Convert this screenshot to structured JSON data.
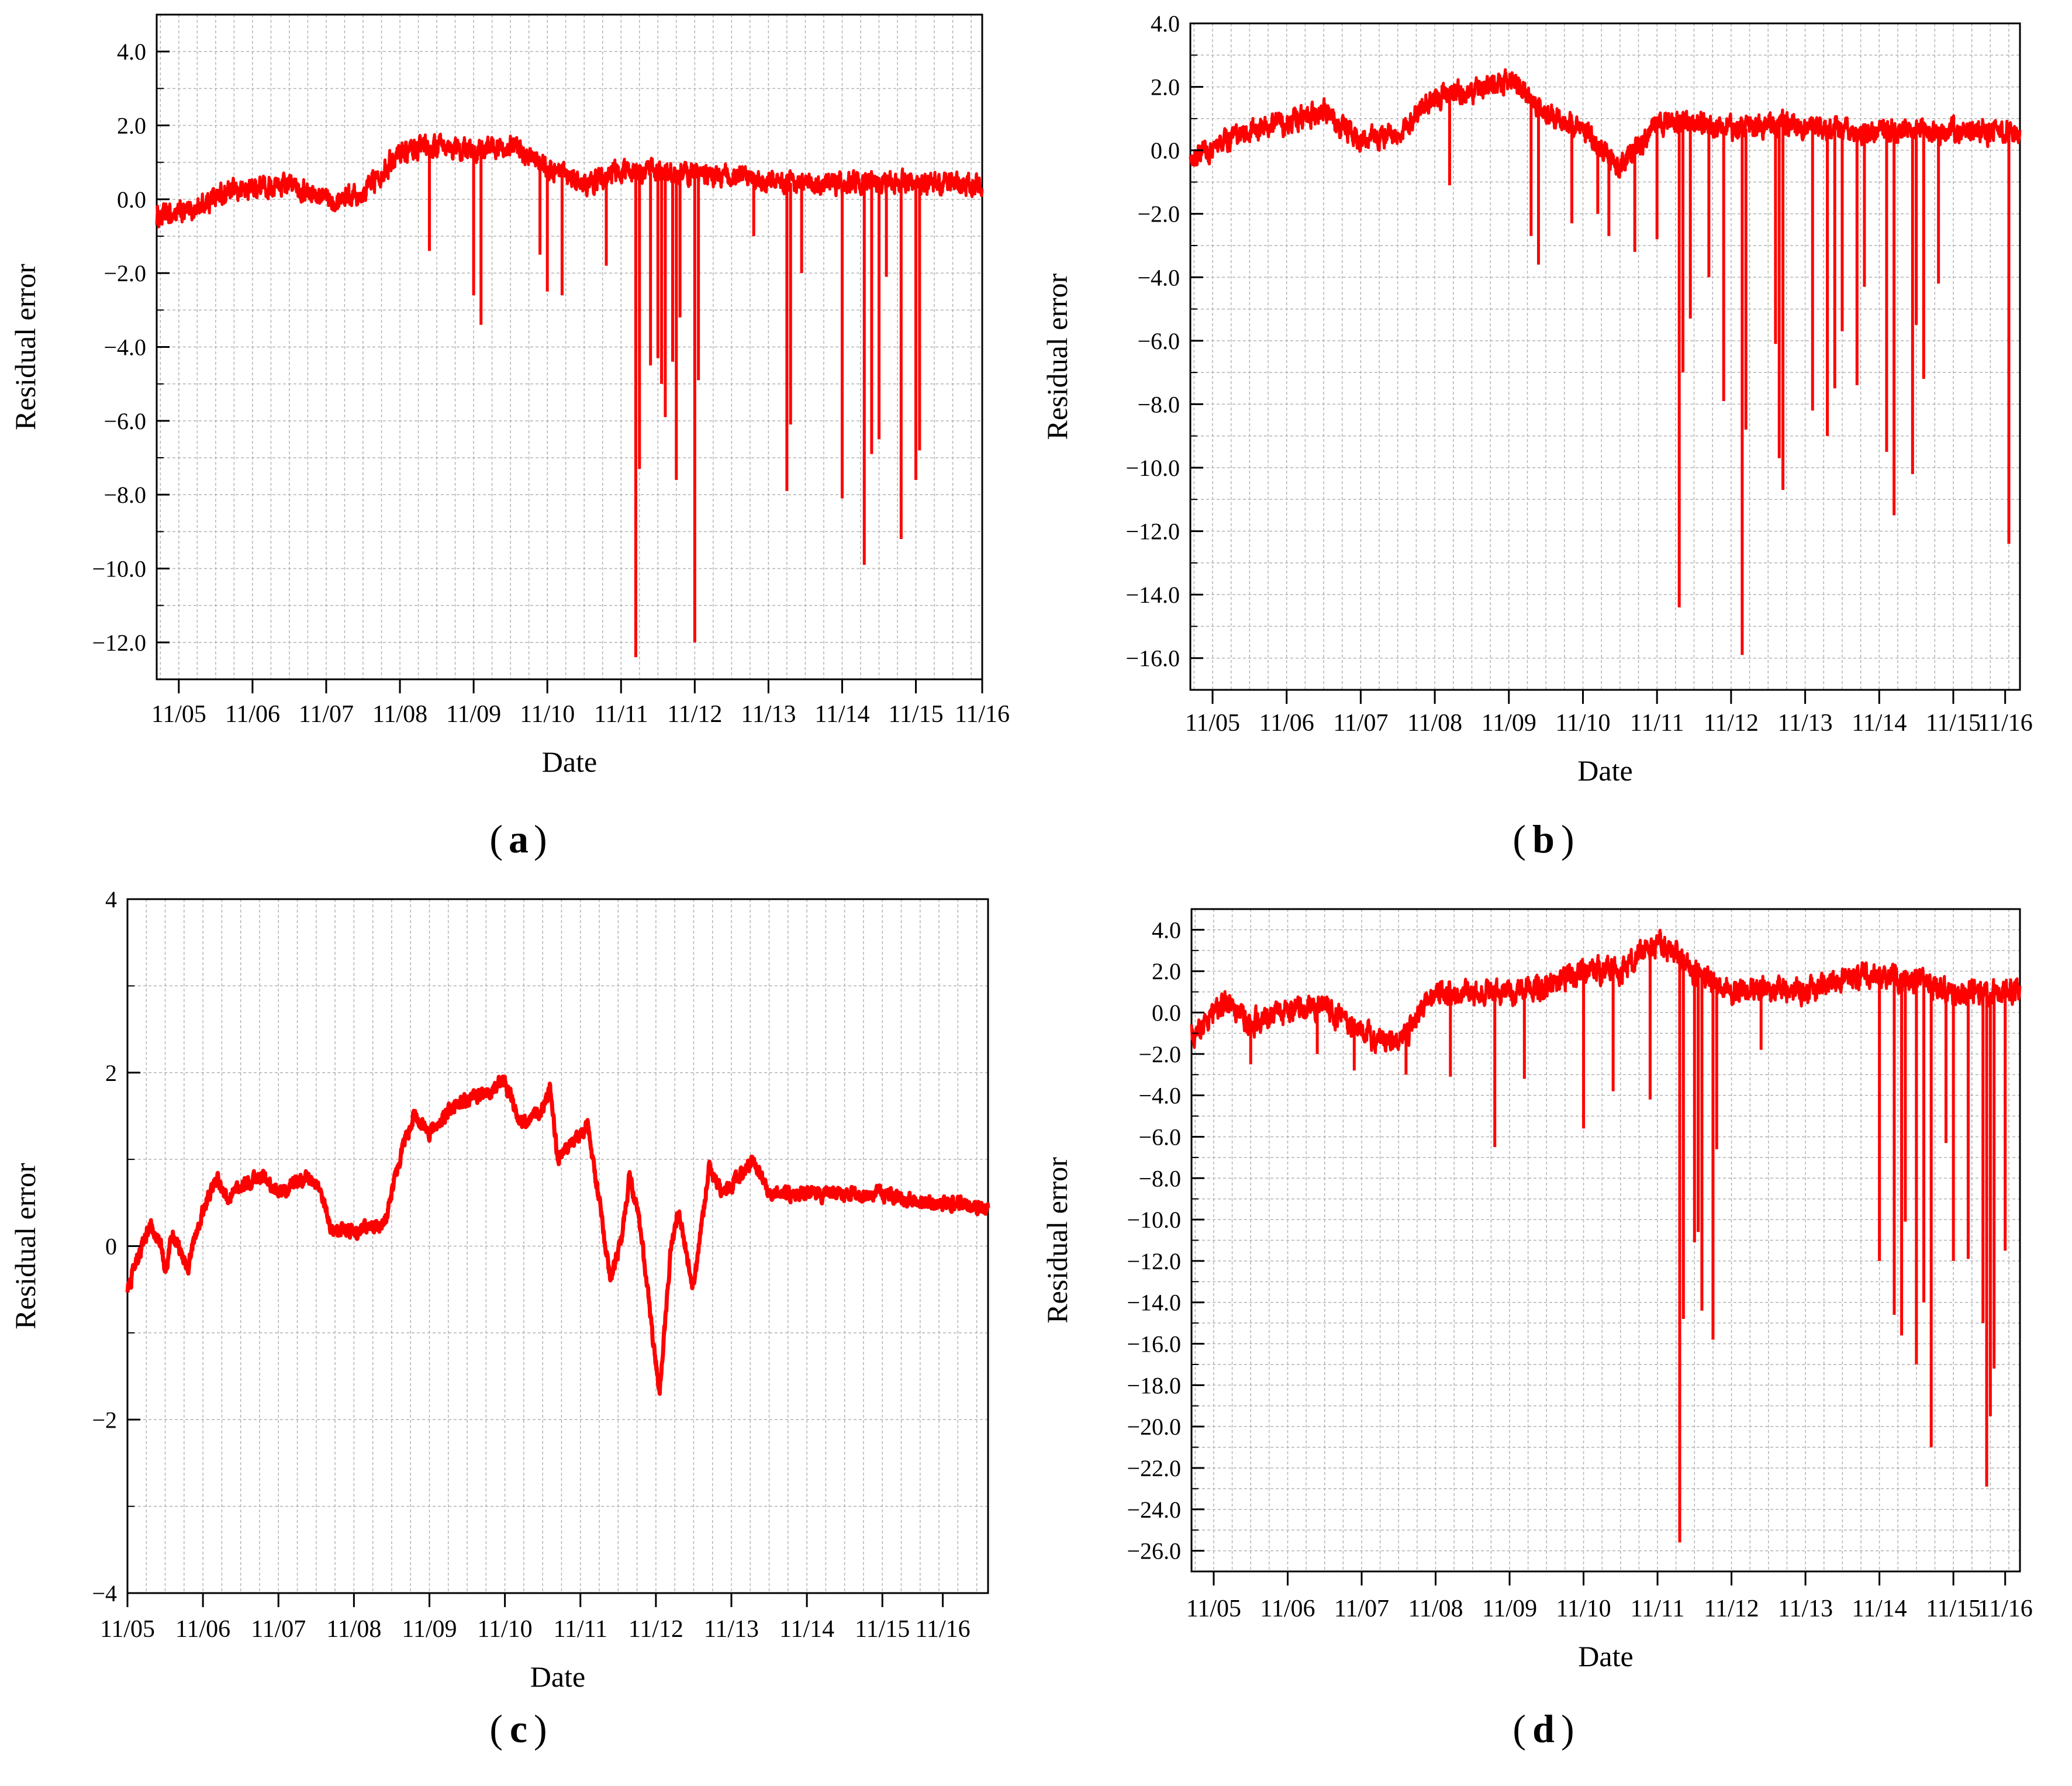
{
  "colors": {
    "series": "#ff0000",
    "axis": "#000000",
    "grid": "#b4b4b4"
  },
  "chart_data": [
    {
      "panel_label": "a",
      "type": "line",
      "title": "",
      "xlabel": "Date",
      "ylabel": "Residual error",
      "ylim": [
        -13,
        5
      ],
      "yticks": [
        4,
        2,
        0,
        -2,
        -4,
        -6,
        -8,
        -10,
        -12
      ],
      "ytick_labels": [
        "4.0",
        "2.0",
        "0.0",
        "−2.0",
        "−4.0",
        "−6.0",
        "−8.0",
        "−10.0",
        "−12.0"
      ],
      "xlim": [
        -0.3,
        10.9
      ],
      "xticks": [
        0,
        1,
        2,
        3,
        4,
        5,
        6,
        7,
        8,
        9,
        10,
        10.9
      ],
      "xtick_labels": [
        "11/05",
        "11/06",
        "11/07",
        "11/08",
        "11/09",
        "11/10",
        "11/11",
        "11/12",
        "11/13",
        "11/14",
        "11/15",
        "11/16"
      ],
      "grid": true,
      "legend": "none",
      "series": [
        {
          "name": "Residual error",
          "anchors": [
            [
              -0.3,
              -0.5
            ],
            [
              0.2,
              -0.3
            ],
            [
              0.5,
              0.1
            ],
            [
              1,
              0.3
            ],
            [
              1.5,
              0.4
            ],
            [
              2,
              0.0
            ],
            [
              2.5,
              0.2
            ],
            [
              3,
              1.3
            ],
            [
              3.5,
              1.4
            ],
            [
              4,
              1.3
            ],
            [
              4.5,
              1.5
            ],
            [
              5,
              0.8
            ],
            [
              5.5,
              0.4
            ],
            [
              6,
              0.8
            ],
            [
              6.5,
              0.7
            ],
            [
              7,
              0.7
            ],
            [
              7.5,
              0.6
            ],
            [
              8,
              0.5
            ],
            [
              8.5,
              0.4
            ],
            [
              9,
              0.4
            ],
            [
              9.5,
              0.5
            ],
            [
              10,
              0.4
            ],
            [
              10.9,
              0.4
            ]
          ],
          "spikes": [
            [
              3.4,
              -1.4
            ],
            [
              4,
              -2.6
            ],
            [
              4.1,
              -3.4
            ],
            [
              4.9,
              -1.5
            ],
            [
              5,
              -2.5
            ],
            [
              5.2,
              -2.6
            ],
            [
              5.8,
              -1.8
            ],
            [
              6.2,
              -12.4
            ],
            [
              6.25,
              -7.3
            ],
            [
              6.4,
              -4.5
            ],
            [
              6.5,
              -4.3
            ],
            [
              6.55,
              -5.0
            ],
            [
              6.6,
              -5.9
            ],
            [
              6.7,
              -4.4
            ],
            [
              6.75,
              -7.6
            ],
            [
              6.8,
              -3.2
            ],
            [
              7.0,
              -12.0
            ],
            [
              7.05,
              -4.9
            ],
            [
              7.8,
              -1.0
            ],
            [
              8.25,
              -7.9
            ],
            [
              8.3,
              -6.1
            ],
            [
              8.45,
              -2.0
            ],
            [
              9.0,
              -8.1
            ],
            [
              9.3,
              -9.9
            ],
            [
              9.4,
              -6.9
            ],
            [
              9.5,
              -6.5
            ],
            [
              9.6,
              -2.1
            ],
            [
              9.8,
              -9.2
            ],
            [
              10.0,
              -7.6
            ],
            [
              10.05,
              -6.8
            ]
          ],
          "noise": 0.45
        }
      ]
    },
    {
      "panel_label": "b",
      "type": "line",
      "title": "",
      "xlabel": "Date",
      "ylabel": "Residual error",
      "ylim": [
        -17,
        4
      ],
      "yticks": [
        4,
        2,
        0,
        -2,
        -4,
        -6,
        -8,
        -10,
        -12,
        -14,
        -16
      ],
      "ytick_labels": [
        "4.0",
        "2.0",
        "0.0",
        "−2.0",
        "−4.0",
        "−6.0",
        "−8.0",
        "−10.0",
        "−12.0",
        "−14.0",
        "−16.0"
      ],
      "xlim": [
        -0.3,
        10.9
      ],
      "xticks": [
        0,
        1,
        2,
        3,
        4,
        5,
        6,
        7,
        8,
        9,
        10,
        10.7
      ],
      "xtick_labels": [
        "11/05",
        "11/06",
        "11/07",
        "11/08",
        "11/09",
        "11/10",
        "11/11",
        "11/12",
        "11/13",
        "11/14",
        "11/15",
        "11/16"
      ],
      "grid": true,
      "legend": "none",
      "series": [
        {
          "name": "Residual error",
          "anchors": [
            [
              -0.3,
              -0.4
            ],
            [
              0.2,
              0.3
            ],
            [
              0.5,
              0.6
            ],
            [
              1,
              0.9
            ],
            [
              1.5,
              1.2
            ],
            [
              2,
              0.3
            ],
            [
              2.5,
              0.5
            ],
            [
              3,
              1.7
            ],
            [
              3.5,
              1.9
            ],
            [
              4,
              2.2
            ],
            [
              4.5,
              1.2
            ],
            [
              5,
              0.6
            ],
            [
              5.5,
              -0.5
            ],
            [
              6,
              0.8
            ],
            [
              6.5,
              0.9
            ],
            [
              7,
              0.6
            ],
            [
              7.5,
              0.8
            ],
            [
              8,
              0.8
            ],
            [
              8.5,
              0.6
            ],
            [
              9,
              0.6
            ],
            [
              9.5,
              0.7
            ],
            [
              10,
              0.6
            ],
            [
              10.9,
              0.6
            ]
          ],
          "spikes": [
            [
              3.2,
              -1.1
            ],
            [
              4.3,
              -2.7
            ],
            [
              4.4,
              -3.6
            ],
            [
              4.85,
              -2.3
            ],
            [
              5.2,
              -2.0
            ],
            [
              5.35,
              -2.7
            ],
            [
              5.7,
              -3.2
            ],
            [
              6.0,
              -2.8
            ],
            [
              6.3,
              -14.4
            ],
            [
              6.35,
              -7.0
            ],
            [
              6.45,
              -5.3
            ],
            [
              6.7,
              -4.0
            ],
            [
              6.9,
              -7.9
            ],
            [
              7.15,
              -15.9
            ],
            [
              7.2,
              -8.8
            ],
            [
              7.6,
              -6.1
            ],
            [
              7.65,
              -9.7
            ],
            [
              7.7,
              -10.7
            ],
            [
              8.1,
              -8.2
            ],
            [
              8.3,
              -9.0
            ],
            [
              8.4,
              -7.5
            ],
            [
              8.5,
              -5.7
            ],
            [
              8.7,
              -7.4
            ],
            [
              8.8,
              -4.3
            ],
            [
              9.1,
              -9.5
            ],
            [
              9.2,
              -11.5
            ],
            [
              9.45,
              -10.2
            ],
            [
              9.5,
              -5.5
            ],
            [
              9.6,
              -7.2
            ],
            [
              9.8,
              -4.2
            ],
            [
              10.75,
              -12.4
            ]
          ],
          "noise": 0.55
        }
      ]
    },
    {
      "panel_label": "c",
      "type": "line",
      "title": "",
      "xlabel": "Date",
      "ylabel": "Residual error",
      "ylim": [
        -4,
        4
      ],
      "yticks": [
        4,
        2,
        0,
        -2,
        -4
      ],
      "ytick_labels": [
        "4",
        "2",
        "0",
        "−2",
        "−4"
      ],
      "xlim": [
        -0.5,
        10.9
      ],
      "xticks": [
        -0.5,
        0.5,
        1.5,
        2.5,
        3.5,
        4.5,
        5.5,
        6.5,
        7.5,
        8.5,
        9.5,
        10.3
      ],
      "xtick_labels": [
        "11/05",
        "11/06",
        "11/07",
        "11/08",
        "11/09",
        "11/10",
        "11/11",
        "11/12",
        "11/13",
        "11/14",
        "11/15",
        "11/16"
      ],
      "grid": true,
      "legend": "none",
      "series": [
        {
          "name": "Residual error",
          "anchors": [
            [
              -0.5,
              -0.5
            ],
            [
              -0.3,
              0.0
            ],
            [
              -0.2,
              0.25
            ],
            [
              -0.05,
              0.0
            ],
            [
              0,
              -0.3
            ],
            [
              0.1,
              0.15
            ],
            [
              0.3,
              -0.25
            ],
            [
              0.45,
              0.3
            ],
            [
              0.7,
              0.8
            ],
            [
              0.8,
              0.55
            ],
            [
              1.1,
              0.75
            ],
            [
              1.3,
              0.8
            ],
            [
              1.5,
              0.6
            ],
            [
              1.9,
              0.8
            ],
            [
              2.1,
              0.55
            ],
            [
              2.2,
              0.2
            ],
            [
              2.5,
              0.15
            ],
            [
              2.9,
              0.25
            ],
            [
              3.0,
              0.6
            ],
            [
              3.2,
              1.3
            ],
            [
              3.3,
              1.5
            ],
            [
              3.5,
              1.3
            ],
            [
              3.8,
              1.6
            ],
            [
              4.3,
              1.8
            ],
            [
              4.5,
              1.9
            ],
            [
              4.7,
              1.4
            ],
            [
              5.0,
              1.6
            ],
            [
              5.1,
              1.8
            ],
            [
              5.2,
              1.0
            ],
            [
              5.4,
              1.2
            ],
            [
              5.6,
              1.4
            ],
            [
              5.9,
              -0.4
            ],
            [
              6.05,
              0.1
            ],
            [
              6.15,
              0.8
            ],
            [
              6.3,
              0.2
            ],
            [
              6.45,
              -1.0
            ],
            [
              6.55,
              -1.7
            ],
            [
              6.7,
              0.0
            ],
            [
              6.8,
              0.4
            ],
            [
              7.0,
              -0.5
            ],
            [
              7.2,
              0.9
            ],
            [
              7.4,
              0.6
            ],
            [
              7.6,
              0.8
            ],
            [
              7.8,
              1.0
            ],
            [
              8.0,
              0.6
            ],
            [
              8.5,
              0.6
            ],
            [
              9.0,
              0.6
            ],
            [
              9.5,
              0.6
            ],
            [
              10.0,
              0.5
            ],
            [
              10.5,
              0.5
            ],
            [
              10.9,
              0.4
            ]
          ],
          "noise": 0.12
        }
      ]
    },
    {
      "panel_label": "d",
      "type": "line",
      "title": "",
      "xlabel": "Date",
      "ylabel": "Residual error",
      "ylim": [
        -27,
        5
      ],
      "yticks": [
        4,
        2,
        0,
        -2,
        -4,
        -6,
        -8,
        -10,
        -12,
        -14,
        -16,
        -18,
        -20,
        -22,
        -24,
        -26
      ],
      "ytick_labels": [
        "4.0",
        "2.0",
        "0.0",
        "−2.0",
        "−4.0",
        "−6.0",
        "−8.0",
        "−10.0",
        "−12.0",
        "−14.0",
        "−16.0",
        "−18.0",
        "−20.0",
        "−22.0",
        "−24.0",
        "−26.0"
      ],
      "xlim": [
        -0.3,
        10.9
      ],
      "xticks": [
        0,
        1,
        2,
        3,
        4,
        5,
        6,
        7,
        8,
        9,
        10,
        10.7
      ],
      "xtick_labels": [
        "11/05",
        "11/06",
        "11/07",
        "11/08",
        "11/09",
        "11/10",
        "11/11",
        "11/12",
        "11/13",
        "11/14",
        "11/15",
        "11/16"
      ],
      "grid": true,
      "legend": "none",
      "series": [
        {
          "name": "Residual error",
          "anchors": [
            [
              -0.3,
              -1.0
            ],
            [
              0.2,
              0.5
            ],
            [
              0.5,
              -0.5
            ],
            [
              1,
              0.0
            ],
            [
              1.5,
              0.3
            ],
            [
              2,
              -1.0
            ],
            [
              2.5,
              -1.5
            ],
            [
              3,
              1.0
            ],
            [
              3.5,
              1.0
            ],
            [
              4,
              1.0
            ],
            [
              4.5,
              1.2
            ],
            [
              5,
              2.0
            ],
            [
              5.5,
              2.0
            ],
            [
              6,
              3.5
            ],
            [
              6.5,
              2.0
            ],
            [
              7,
              1.0
            ],
            [
              7.5,
              1.2
            ],
            [
              8,
              1.0
            ],
            [
              8.5,
              1.5
            ],
            [
              9,
              1.8
            ],
            [
              9.5,
              1.5
            ],
            [
              10,
              1.0
            ],
            [
              10.9,
              1.0
            ]
          ],
          "spikes": [
            [
              0.5,
              -2.5
            ],
            [
              1.4,
              -2.0
            ],
            [
              1.9,
              -2.8
            ],
            [
              2.6,
              -3.0
            ],
            [
              3.2,
              -3.1
            ],
            [
              3.8,
              -6.5
            ],
            [
              4.2,
              -3.2
            ],
            [
              5.0,
              -5.6
            ],
            [
              5.4,
              -3.8
            ],
            [
              5.9,
              -4.2
            ],
            [
              6.3,
              -25.6
            ],
            [
              6.35,
              -14.8
            ],
            [
              6.5,
              -11.1
            ],
            [
              6.55,
              -10.6
            ],
            [
              6.6,
              -14.4
            ],
            [
              6.75,
              -15.8
            ],
            [
              6.8,
              -6.6
            ],
            [
              7.4,
              -1.8
            ],
            [
              9.0,
              -12.0
            ],
            [
              9.2,
              -14.6
            ],
            [
              9.3,
              -15.6
            ],
            [
              9.35,
              -10.1
            ],
            [
              9.5,
              -17.0
            ],
            [
              9.6,
              -14.0
            ],
            [
              9.7,
              -21.0
            ],
            [
              9.9,
              -6.3
            ],
            [
              10.0,
              -12.0
            ],
            [
              10.2,
              -11.9
            ],
            [
              10.4,
              -15.0
            ],
            [
              10.45,
              -22.9
            ],
            [
              10.5,
              -19.5
            ],
            [
              10.55,
              -17.2
            ],
            [
              10.7,
              -11.5
            ]
          ],
          "noise": 0.9
        }
      ]
    }
  ]
}
